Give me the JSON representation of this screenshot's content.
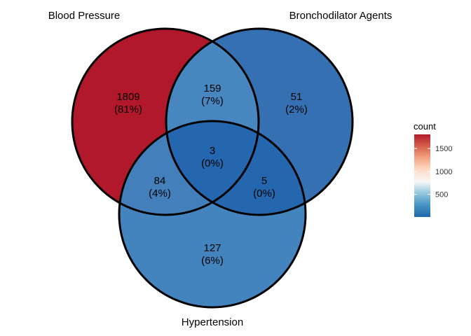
{
  "chart_data": {
    "type": "venn",
    "sets": [
      "Blood Pressure",
      "Bronchodilator Agents",
      "Hypertension"
    ],
    "regions": [
      {
        "sets": [
          "Blood Pressure"
        ],
        "count": 1809,
        "percent": "(81%)",
        "color": "#B2182B"
      },
      {
        "sets": [
          "Bronchodilator Agents"
        ],
        "count": 51,
        "percent": "(2%)",
        "color": "#3570B3"
      },
      {
        "sets": [
          "Hypertension"
        ],
        "count": 127,
        "percent": "(6%)",
        "color": "#4383BE"
      },
      {
        "sets": [
          "Blood Pressure",
          "Bronchodilator Agents"
        ],
        "count": 159,
        "percent": "(7%)",
        "color": "#4886C0"
      },
      {
        "sets": [
          "Blood Pressure",
          "Hypertension"
        ],
        "count": 84,
        "percent": "(4%)",
        "color": "#437FBB"
      },
      {
        "sets": [
          "Bronchodilator Agents",
          "Hypertension"
        ],
        "count": 5,
        "percent": "(0%)",
        "color": "#2467AF"
      },
      {
        "sets": [
          "Blood Pressure",
          "Bronchodilator Agents",
          "Hypertension"
        ],
        "count": 3,
        "percent": "(0%)",
        "color": "#2467AF"
      }
    ],
    "legend": {
      "title": "count",
      "ticks": [
        500,
        1000,
        1500
      ],
      "range": [
        3,
        1809
      ],
      "gradient": [
        "#2166AC",
        "#4393C3",
        "#92C5DE",
        "#F7F7F7",
        "#FDDBC7",
        "#F4A582",
        "#D6604D",
        "#B2182B"
      ]
    }
  }
}
